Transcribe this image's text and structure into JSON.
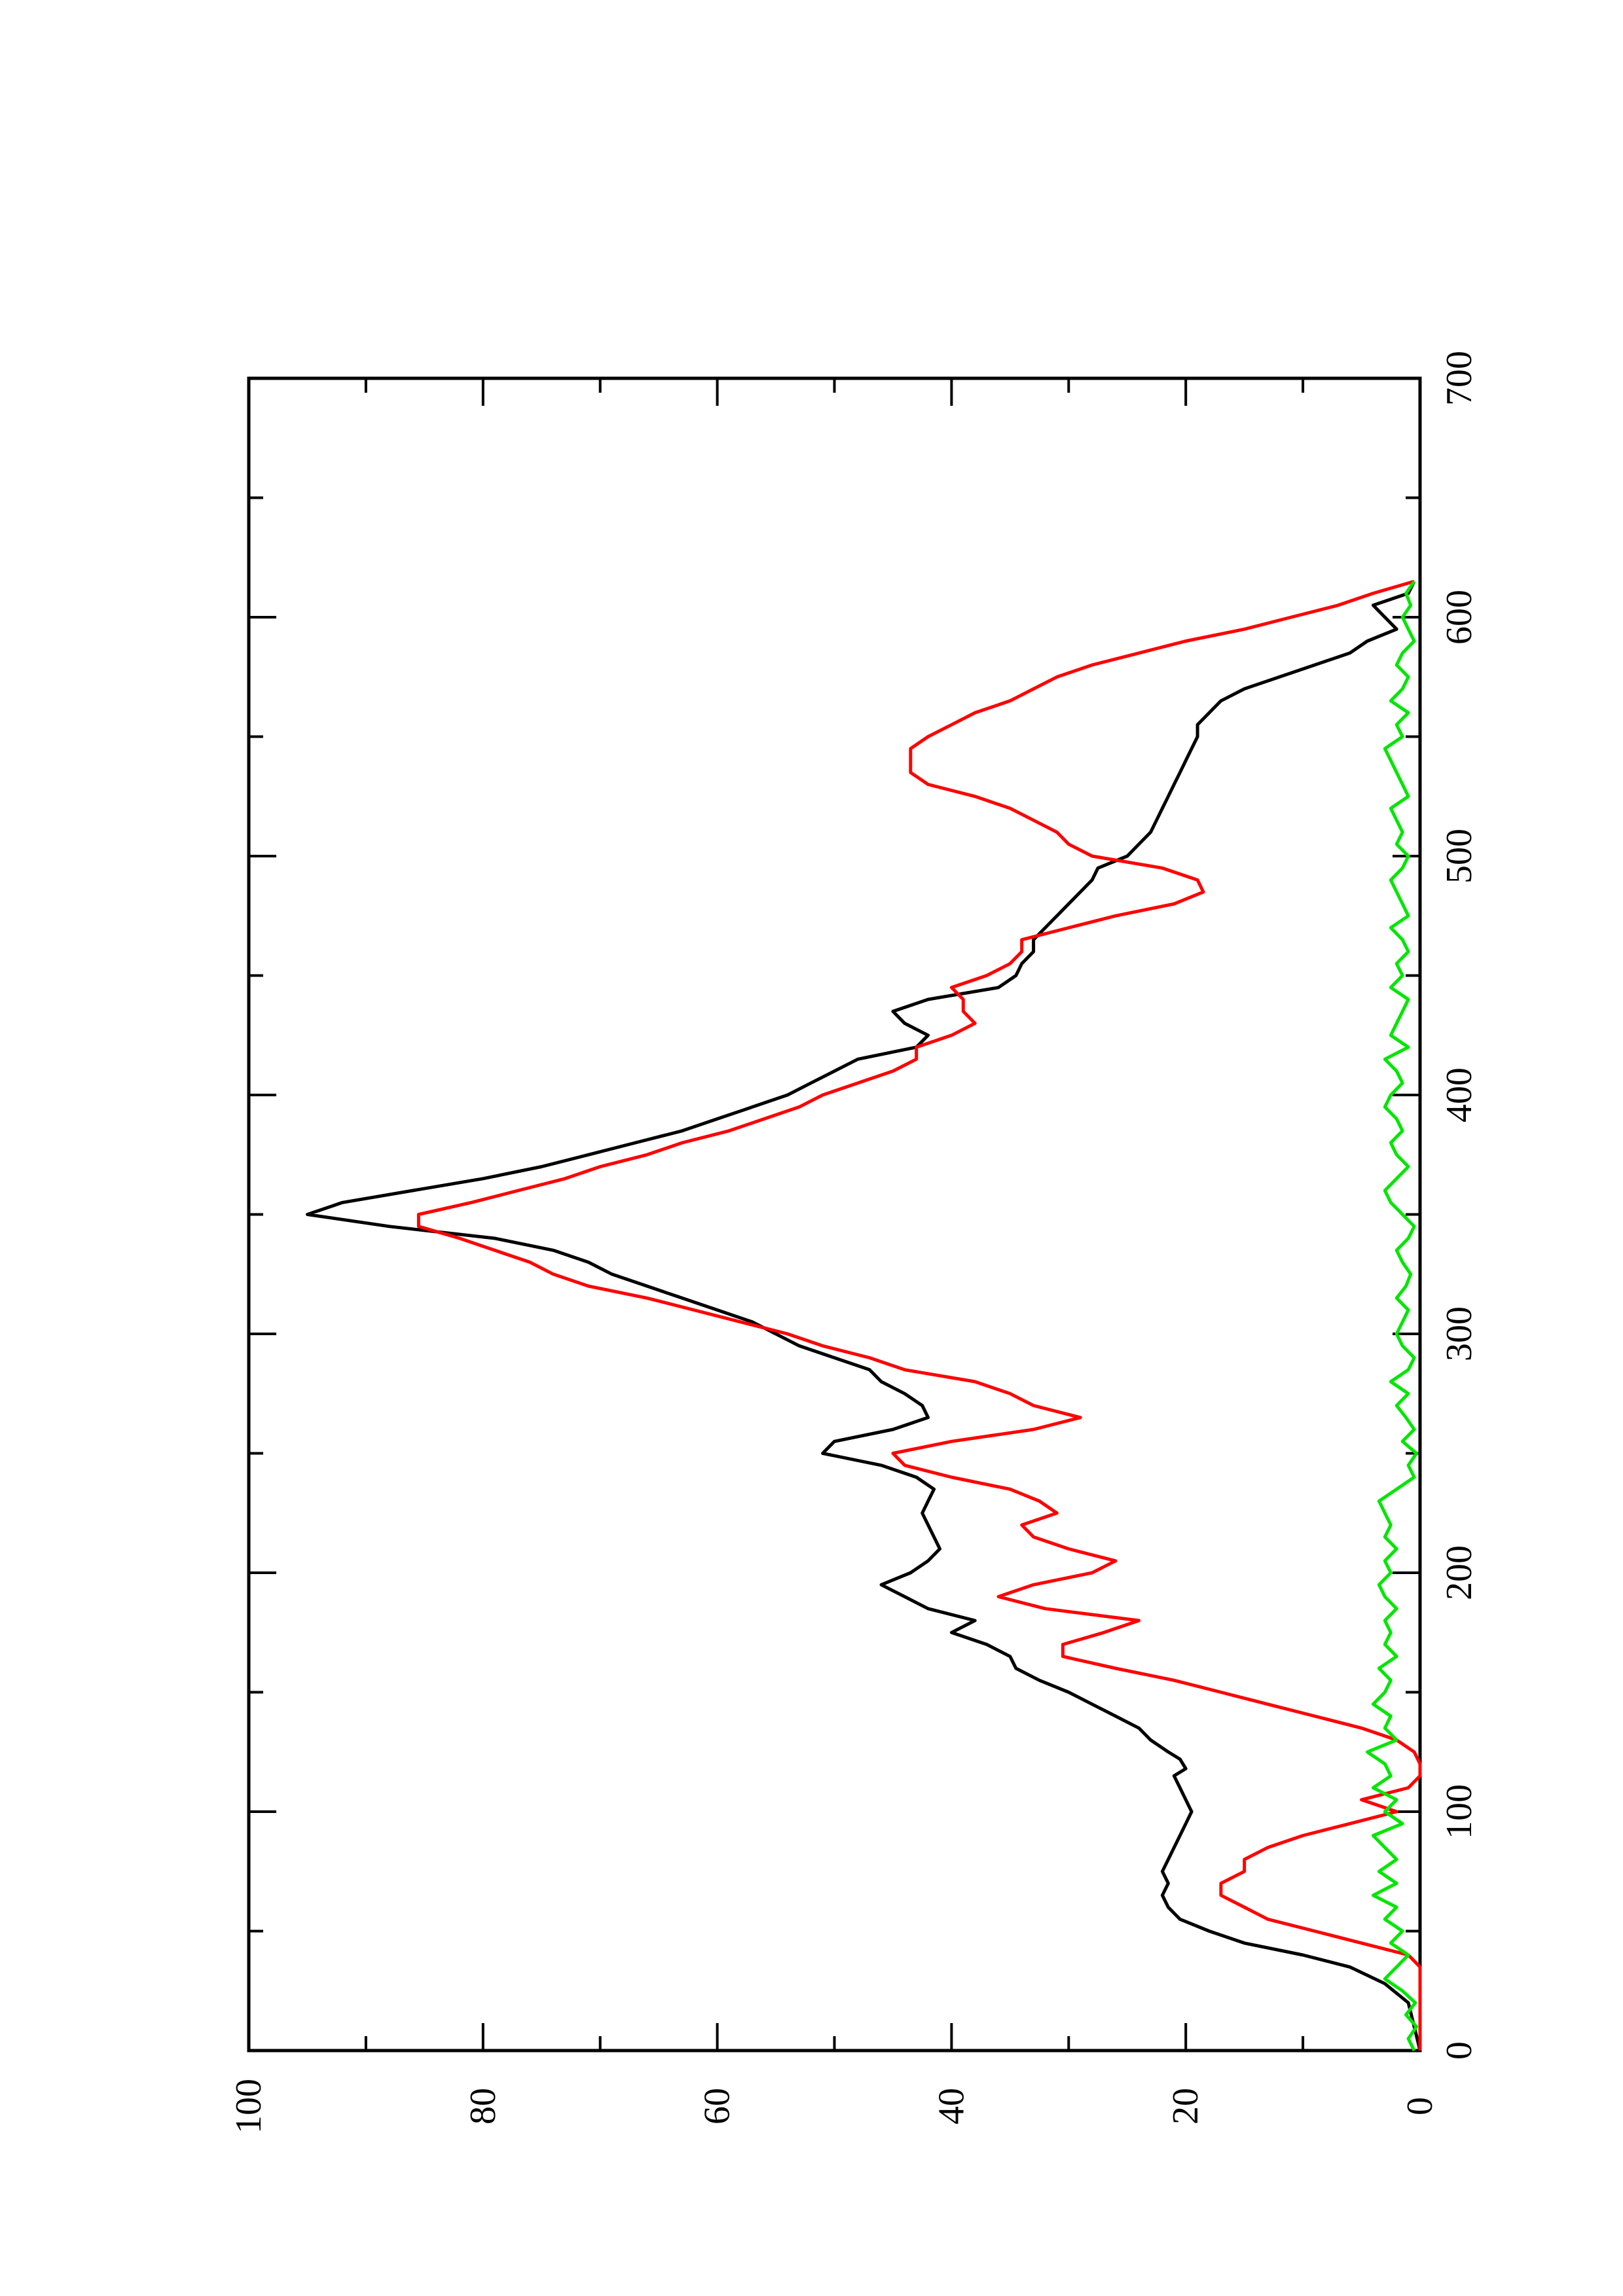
{
  "chart_data": {
    "type": "line",
    "orientation": "rotated 90 degrees counter-clockwise (x axis runs bottom-to-top along the right edge, y axis runs right-to-left along the bottom edge)",
    "title": "",
    "xlabel": "",
    "ylabel": "",
    "xlim": [
      0,
      700
    ],
    "ylim": [
      0,
      100
    ],
    "x_ticks": [
      0,
      100,
      200,
      300,
      400,
      500,
      600,
      700
    ],
    "y_ticks": [
      0,
      20,
      40,
      60,
      80,
      100
    ],
    "x_tick_labels": [
      "0",
      "100",
      "200",
      "300",
      "400",
      "500",
      "600",
      "700"
    ],
    "y_tick_labels": [
      "0",
      "20",
      "40",
      "60",
      "80",
      "100"
    ],
    "grid": false,
    "legend": "none",
    "series": [
      {
        "color": "#000000",
        "x": [
          0,
          10,
          20,
          28,
          35,
          40,
          45,
          50,
          55,
          60,
          65,
          70,
          75,
          80,
          85,
          90,
          95,
          100,
          105,
          110,
          115,
          118,
          122,
          125,
          130,
          135,
          140,
          145,
          150,
          155,
          160,
          165,
          170,
          175,
          180,
          185,
          190,
          195,
          200,
          205,
          210,
          215,
          220,
          225,
          230,
          235,
          240,
          245,
          250,
          255,
          260,
          265,
          270,
          275,
          280,
          285,
          290,
          295,
          300,
          305,
          310,
          315,
          320,
          325,
          330,
          335,
          340,
          345,
          350,
          355,
          360,
          365,
          370,
          375,
          380,
          385,
          390,
          395,
          400,
          405,
          410,
          415,
          420,
          425,
          430,
          435,
          440,
          445,
          450,
          455,
          460,
          465,
          470,
          475,
          480,
          485,
          490,
          495,
          500,
          505,
          510,
          515,
          520,
          525,
          530,
          535,
          540,
          545,
          550,
          555,
          560,
          565,
          570,
          575,
          580,
          585,
          590,
          595,
          600,
          605,
          610,
          615
        ],
        "y": [
          0,
          0.5,
          1,
          3,
          6,
          10,
          15,
          18,
          20.5,
          21.5,
          22,
          21.5,
          22,
          21.5,
          21,
          20.5,
          20,
          19.5,
          20,
          20.5,
          21,
          20,
          20.5,
          21.5,
          23,
          24,
          26,
          28,
          30,
          32.5,
          34.5,
          35,
          37,
          40,
          38,
          42,
          44,
          46,
          43.5,
          42,
          41,
          41.5,
          42,
          42.5,
          42,
          41.5,
          43,
          46,
          51,
          50,
          45,
          42,
          42.5,
          44,
          46,
          47,
          50,
          53,
          55,
          57,
          60,
          63,
          66,
          69,
          71,
          74,
          79,
          88,
          95,
          92,
          86,
          80,
          75,
          71,
          67,
          63,
          60,
          57,
          54,
          52,
          50,
          48,
          43,
          42,
          44,
          45,
          42,
          36,
          34.5,
          34,
          33,
          33,
          32,
          31,
          30,
          29,
          28,
          27.5,
          25,
          24,
          23,
          22.5,
          22,
          21.5,
          21,
          20.5,
          20,
          19.5,
          19,
          19,
          18,
          17,
          15,
          12,
          9,
          6,
          4.5,
          2,
          3,
          4,
          1,
          0.5
        ]
      },
      {
        "color": "#ff0000",
        "x": [
          0,
          10,
          20,
          30,
          35,
          40,
          45,
          50,
          55,
          60,
          65,
          70,
          75,
          80,
          85,
          90,
          95,
          100,
          105,
          110,
          115,
          120,
          125,
          130,
          135,
          140,
          145,
          150,
          155,
          160,
          165,
          170,
          175,
          180,
          185,
          190,
          195,
          200,
          205,
          210,
          215,
          220,
          225,
          230,
          235,
          240,
          245,
          250,
          255,
          260,
          265,
          270,
          275,
          280,
          285,
          290,
          295,
          300,
          305,
          310,
          315,
          320,
          325,
          330,
          335,
          340,
          345,
          350,
          355,
          360,
          365,
          370,
          375,
          380,
          385,
          390,
          395,
          400,
          405,
          410,
          415,
          420,
          425,
          430,
          435,
          440,
          445,
          450,
          455,
          460,
          465,
          470,
          475,
          480,
          485,
          490,
          495,
          500,
          505,
          510,
          515,
          520,
          525,
          530,
          535,
          540,
          545,
          550,
          555,
          560,
          565,
          570,
          575,
          580,
          585,
          590,
          595,
          600,
          605,
          610,
          615
        ],
        "y": [
          0,
          0,
          0,
          0,
          0,
          1,
          5,
          9,
          13,
          15,
          17,
          17,
          15,
          15,
          13,
          10,
          6,
          2,
          5,
          1,
          0,
          0,
          0.5,
          2,
          5,
          9,
          13,
          17,
          21,
          26,
          30.5,
          30.5,
          27,
          24,
          32,
          36,
          33,
          28,
          26,
          30,
          33,
          34,
          31,
          32.5,
          35,
          40,
          44,
          45,
          40,
          33,
          29,
          33,
          35,
          38,
          44,
          47,
          51,
          54,
          58,
          62,
          66,
          71,
          74,
          76,
          79,
          82,
          85.5,
          85.5,
          81,
          77,
          73,
          70,
          66,
          63,
          59,
          56,
          53,
          51,
          48,
          45,
          43,
          43,
          40,
          38,
          39,
          39,
          40,
          37,
          35,
          34,
          34,
          30,
          26,
          21,
          18.5,
          19,
          22,
          28,
          30,
          31,
          33,
          35,
          38,
          42,
          43.5,
          43.5,
          43.5,
          42,
          40,
          38,
          35,
          33,
          31,
          28,
          24,
          20,
          15,
          11,
          7,
          4,
          0.5
        ]
      },
      {
        "color": "#00e600",
        "x": [
          0,
          5,
          10,
          15,
          20,
          25,
          30,
          35,
          40,
          45,
          50,
          55,
          60,
          65,
          70,
          75,
          80,
          85,
          90,
          95,
          100,
          105,
          110,
          115,
          120,
          125,
          130,
          135,
          140,
          145,
          150,
          155,
          160,
          165,
          170,
          175,
          180,
          185,
          190,
          195,
          200,
          205,
          210,
          215,
          220,
          225,
          230,
          235,
          240,
          245,
          250,
          255,
          260,
          265,
          270,
          275,
          280,
          285,
          290,
          295,
          300,
          305,
          310,
          315,
          320,
          325,
          330,
          335,
          340,
          345,
          350,
          355,
          360,
          365,
          370,
          375,
          380,
          385,
          390,
          395,
          400,
          405,
          410,
          415,
          420,
          425,
          430,
          435,
          440,
          445,
          450,
          455,
          460,
          465,
          470,
          475,
          480,
          485,
          490,
          495,
          500,
          505,
          510,
          515,
          520,
          525,
          530,
          535,
          540,
          545,
          550,
          555,
          560,
          565,
          570,
          575,
          580,
          585,
          590,
          595,
          600,
          605,
          610,
          615
        ],
        "y": [
          0.5,
          1,
          0.3,
          1.2,
          0.4,
          1.5,
          3,
          2,
          1,
          2.5,
          1.5,
          3,
          2,
          4,
          2,
          3.5,
          2,
          3,
          4,
          1.5,
          3,
          2,
          4,
          2.5,
          3,
          4.5,
          2,
          3,
          2.5,
          4,
          3,
          2.5,
          3.5,
          2,
          3,
          2.5,
          3,
          2,
          3,
          3.5,
          2.5,
          3,
          2,
          3,
          2.5,
          3,
          3.5,
          2,
          0.5,
          1,
          0.3,
          1.5,
          0.5,
          1.2,
          2,
          1,
          2.5,
          1,
          0.5,
          1.5,
          2,
          1.5,
          1,
          2,
          1.2,
          0.8,
          1.5,
          2,
          1,
          0.5,
          1.5,
          2.5,
          3,
          2,
          1,
          2,
          2.5,
          1.5,
          2,
          3,
          2.5,
          1.5,
          2,
          3,
          1,
          2.5,
          2,
          1.5,
          1,
          2.5,
          1.5,
          2,
          1,
          1.5,
          2.5,
          1,
          1.5,
          2,
          2.5,
          1.5,
          1,
          2,
          1.5,
          2,
          2.5,
          1,
          1.5,
          2,
          2.5,
          3,
          1.5,
          2,
          1,
          2.5,
          1.5,
          1,
          2,
          1.5,
          0.5,
          1,
          1.5,
          0.8,
          1.2,
          0.5
        ]
      }
    ]
  }
}
